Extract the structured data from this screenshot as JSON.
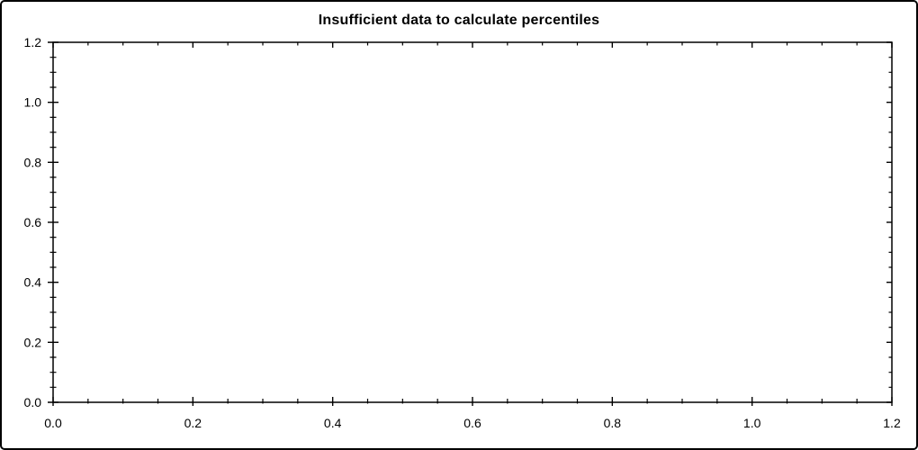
{
  "chart_data": {
    "type": "scatter",
    "title": "Insufficient data to calculate percentiles",
    "series": [],
    "xlabel": "",
    "ylabel": "",
    "xlim": [
      0,
      1.2
    ],
    "ylim": [
      0,
      1.2
    ],
    "x_ticks": {
      "values": [
        0.0,
        0.2,
        0.4,
        0.6,
        0.8,
        1.0,
        1.2
      ],
      "labels": [
        "0.0",
        "0.2",
        "0.4",
        "0.6",
        "0.8",
        "1.0",
        "1.2"
      ],
      "minor_step": 0.05
    },
    "y_ticks": {
      "values": [
        0.0,
        0.2,
        0.4,
        0.6,
        0.8,
        1.0,
        1.2
      ],
      "labels": [
        "0.0",
        "0.2",
        "0.4",
        "0.6",
        "0.8",
        "1.0",
        "1.2"
      ],
      "minor_step": 0.05
    },
    "grid": false,
    "legend": null,
    "frame": "box",
    "colors": {
      "axis": "#000000",
      "text": "#000000",
      "background": "#ffffff",
      "border": "#000000"
    }
  }
}
